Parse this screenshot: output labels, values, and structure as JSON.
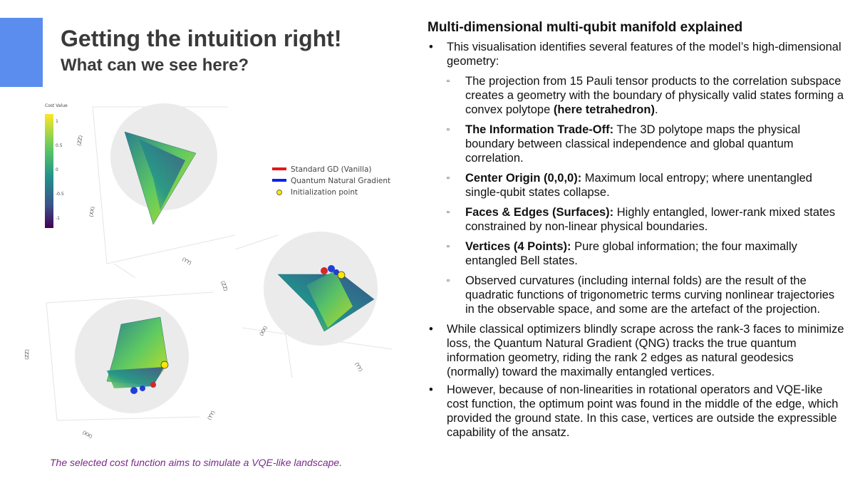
{
  "header": {
    "title": "Getting the intuition right!",
    "subtitle": "What can we see here?"
  },
  "plot": {
    "colorbar": {
      "title": "Cost Value",
      "ticks": [
        "1",
        "0.5",
        "0",
        "-0.5",
        "-1"
      ]
    },
    "legend": [
      "Standard GD (Vanilla)",
      "Quantum Natural Gradient",
      "Initialization point"
    ],
    "axis_titles": [
      "⟨ZZ⟩",
      "⟨XX⟩",
      "⟨YY⟩"
    ]
  },
  "caption": "The selected cost function aims to simulate a VQE-like landscape.",
  "panel": {
    "heading": "Multi-dimensional multi-qubit manifold explained",
    "bullets": [
      {
        "text": "This visualisation identifies several features of the model’s high-dimensional geometry:",
        "sub": [
          {
            "pre": "The projection from 15 Pauli tensor products to the correlation subspace creates a geometry with the boundary of physically valid states forming a convex polytope ",
            "bold": "(here tetrahedron)",
            "post": "."
          },
          {
            "bold": "The Information Trade-Off:",
            "post": " The 3D polytope maps the physical boundary between classical independence and global quantum correlation."
          },
          {
            "bold": "Center Origin (0,0,0):",
            "post": " Maximum local entropy; where unentangled single-qubit states collapse."
          },
          {
            "bold": "Faces & Edges (Surfaces):",
            "post": " Highly entangled, lower-rank mixed states constrained by non-linear physical boundaries."
          },
          {
            "bold": "Vertices (4 Points):",
            "post": " Pure global information; the four maximally entangled Bell states."
          },
          {
            "pre": "Observed curvatures (including internal folds) are the result of the quadratic functions of trigonometric terms curving nonlinear trajectories in the observable space, and some are the artefact of the projection."
          }
        ]
      },
      {
        "text": "While classical optimizers blindly scrape across the rank-3 faces to minimize loss, the Quantum Natural Gradient (QNG) tracks the true quantum information geometry, riding the rank 2 edges as natural geodesics (normally) toward the maximally entangled vertices."
      },
      {
        "text": "However, because of non-linearities in rotational operators and VQE-like cost function, the optimum point was found in the middle of the edge, which provided the ground state. In this case, vertices are outside the expressible capability of the ansatz."
      }
    ]
  }
}
